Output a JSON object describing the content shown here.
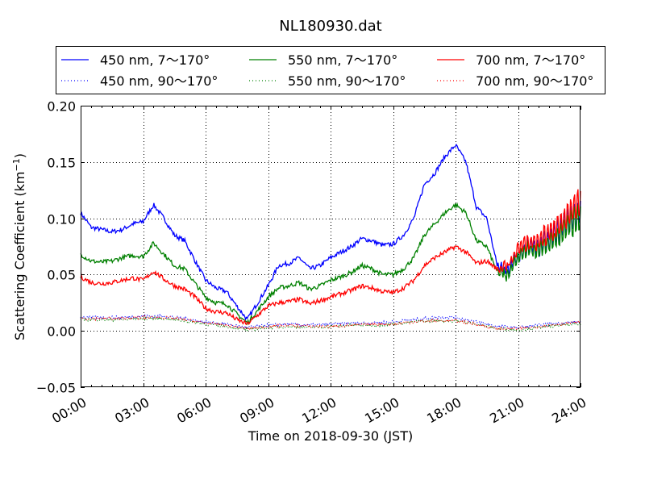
{
  "chart_data": {
    "type": "line",
    "title": "NL180930.dat",
    "xlabel": "Time on 2018-09-30 (JST)",
    "ylabel": "Scattering Coefficient (km",
    "ylabel_sup": "−1",
    "ylabel_end": ")",
    "xlim": [
      0,
      24
    ],
    "ylim": [
      -0.05,
      0.2
    ],
    "xticks": [
      0,
      3,
      6,
      9,
      12,
      15,
      18,
      21,
      24
    ],
    "xtick_labels": [
      "00:00",
      "03:00",
      "06:00",
      "09:00",
      "12:00",
      "15:00",
      "18:00",
      "21:00",
      "24:00"
    ],
    "yticks": [
      -0.05,
      0.0,
      0.05,
      0.1,
      0.15,
      0.2
    ],
    "ytick_labels": [
      "−0.05",
      "0.00",
      "0.05",
      "0.10",
      "0.15",
      "0.20"
    ],
    "grid": true,
    "legend_position": "above plot, 3 columns",
    "x_solid_hours_step": 0.5,
    "x_dotted_hours_step": 1,
    "series": [
      {
        "name": "450 nm, 7～170°",
        "color": "#0000ff",
        "style": "solid",
        "values": [
          0.105,
          0.092,
          0.09,
          0.088,
          0.09,
          0.095,
          0.097,
          0.112,
          0.1,
          0.085,
          0.08,
          0.062,
          0.045,
          0.038,
          0.035,
          0.022,
          0.01,
          0.025,
          0.04,
          0.058,
          0.06,
          0.065,
          0.055,
          0.058,
          0.065,
          0.07,
          0.075,
          0.082,
          0.08,
          0.076,
          0.077,
          0.085,
          0.1,
          0.13,
          0.14,
          0.155,
          0.165,
          0.15,
          0.11,
          0.1,
          0.058,
          0.055,
          0.065,
          0.075,
          0.075,
          0.082,
          0.09,
          0.1,
          0.105
        ]
      },
      {
        "name": "550 nm, 7～170°",
        "color": "#008000",
        "style": "solid",
        "values": [
          0.068,
          0.062,
          0.061,
          0.062,
          0.065,
          0.067,
          0.066,
          0.078,
          0.068,
          0.058,
          0.055,
          0.042,
          0.03,
          0.025,
          0.024,
          0.015,
          0.007,
          0.018,
          0.03,
          0.038,
          0.04,
          0.043,
          0.037,
          0.04,
          0.045,
          0.048,
          0.052,
          0.058,
          0.055,
          0.05,
          0.05,
          0.055,
          0.065,
          0.085,
          0.095,
          0.105,
          0.112,
          0.105,
          0.08,
          0.075,
          0.052,
          0.05,
          0.065,
          0.072,
          0.072,
          0.078,
          0.085,
          0.095,
          0.1
        ]
      },
      {
        "name": "700 nm, 7～170°",
        "color": "#ff0000",
        "style": "solid",
        "values": [
          0.048,
          0.043,
          0.042,
          0.043,
          0.045,
          0.047,
          0.045,
          0.053,
          0.046,
          0.04,
          0.037,
          0.03,
          0.02,
          0.017,
          0.016,
          0.01,
          0.006,
          0.014,
          0.022,
          0.025,
          0.026,
          0.028,
          0.024,
          0.027,
          0.03,
          0.033,
          0.036,
          0.04,
          0.038,
          0.035,
          0.034,
          0.038,
          0.045,
          0.058,
          0.065,
          0.07,
          0.075,
          0.07,
          0.06,
          0.062,
          0.055,
          0.058,
          0.072,
          0.08,
          0.08,
          0.088,
          0.095,
          0.105,
          0.115
        ]
      },
      {
        "name": "450 nm, 90～170°",
        "color": "#0000ff",
        "style": "dotted",
        "values": [
          0.012,
          0.012,
          0.012,
          0.013,
          0.013,
          0.011,
          0.008,
          0.006,
          0.003,
          0.005,
          0.006,
          0.005,
          0.006,
          0.007,
          0.007,
          0.008,
          0.01,
          0.012,
          0.012,
          0.008,
          0.004,
          0.003,
          0.005,
          0.007,
          0.008
        ]
      },
      {
        "name": "550 nm, 90～170°",
        "color": "#008000",
        "style": "dotted",
        "values": [
          0.01,
          0.01,
          0.01,
          0.011,
          0.011,
          0.009,
          0.006,
          0.004,
          0.001,
          0.003,
          0.004,
          0.003,
          0.004,
          0.005,
          0.005,
          0.006,
          0.008,
          0.009,
          0.009,
          0.006,
          0.002,
          0.001,
          0.003,
          0.005,
          0.006
        ]
      },
      {
        "name": "700 nm, 90～170°",
        "color": "#ff0000",
        "style": "dotted",
        "values": [
          0.011,
          0.011,
          0.011,
          0.012,
          0.012,
          0.01,
          0.007,
          0.005,
          0.002,
          0.004,
          0.005,
          0.004,
          0.004,
          0.005,
          0.006,
          0.006,
          0.008,
          0.009,
          0.009,
          0.006,
          0.002,
          0.002,
          0.004,
          0.006,
          0.008
        ]
      }
    ]
  }
}
